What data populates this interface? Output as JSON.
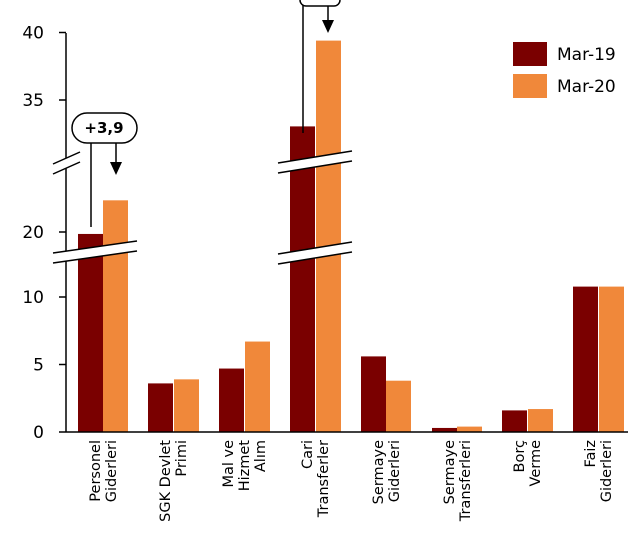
{
  "chart_data": {
    "type": "bar",
    "title": "",
    "xlabel": "",
    "ylabel": "",
    "axis_break": {
      "lower_top": 10,
      "upper_start": 20,
      "upper_break": 35
    },
    "y_ticks": [
      "0",
      "5",
      "10",
      "20",
      "35",
      "40"
    ],
    "categories": [
      [
        "Personel",
        "Giderleri"
      ],
      [
        "SGK Devlet",
        "Primi"
      ],
      [
        "Mal ve",
        "Hizmet",
        "Alım"
      ],
      [
        "Cari",
        "Transferler"
      ],
      [
        "Sermaye",
        "Giderleri"
      ],
      [
        "Sermaye",
        "Transferleri"
      ],
      [
        "Borç",
        "Verme"
      ],
      [
        "Faiz",
        "Giderleri"
      ]
    ],
    "series": [
      {
        "name": "Mar-19",
        "color": "#7a0000",
        "values": [
          19.7,
          3.6,
          4.7,
          32,
          5.6,
          0.3,
          1.6,
          11.6
        ]
      },
      {
        "name": "Mar-20",
        "color": "#f0883a",
        "values": [
          23.6,
          3.9,
          6.7,
          39.4,
          3.8,
          0.4,
          1.7,
          11.6
        ]
      }
    ],
    "legend_position": "top-right",
    "annotations": [
      {
        "text": "+3,9",
        "category_index": 0
      },
      {
        "text": "",
        "category_index": 3
      }
    ],
    "grid": false
  }
}
